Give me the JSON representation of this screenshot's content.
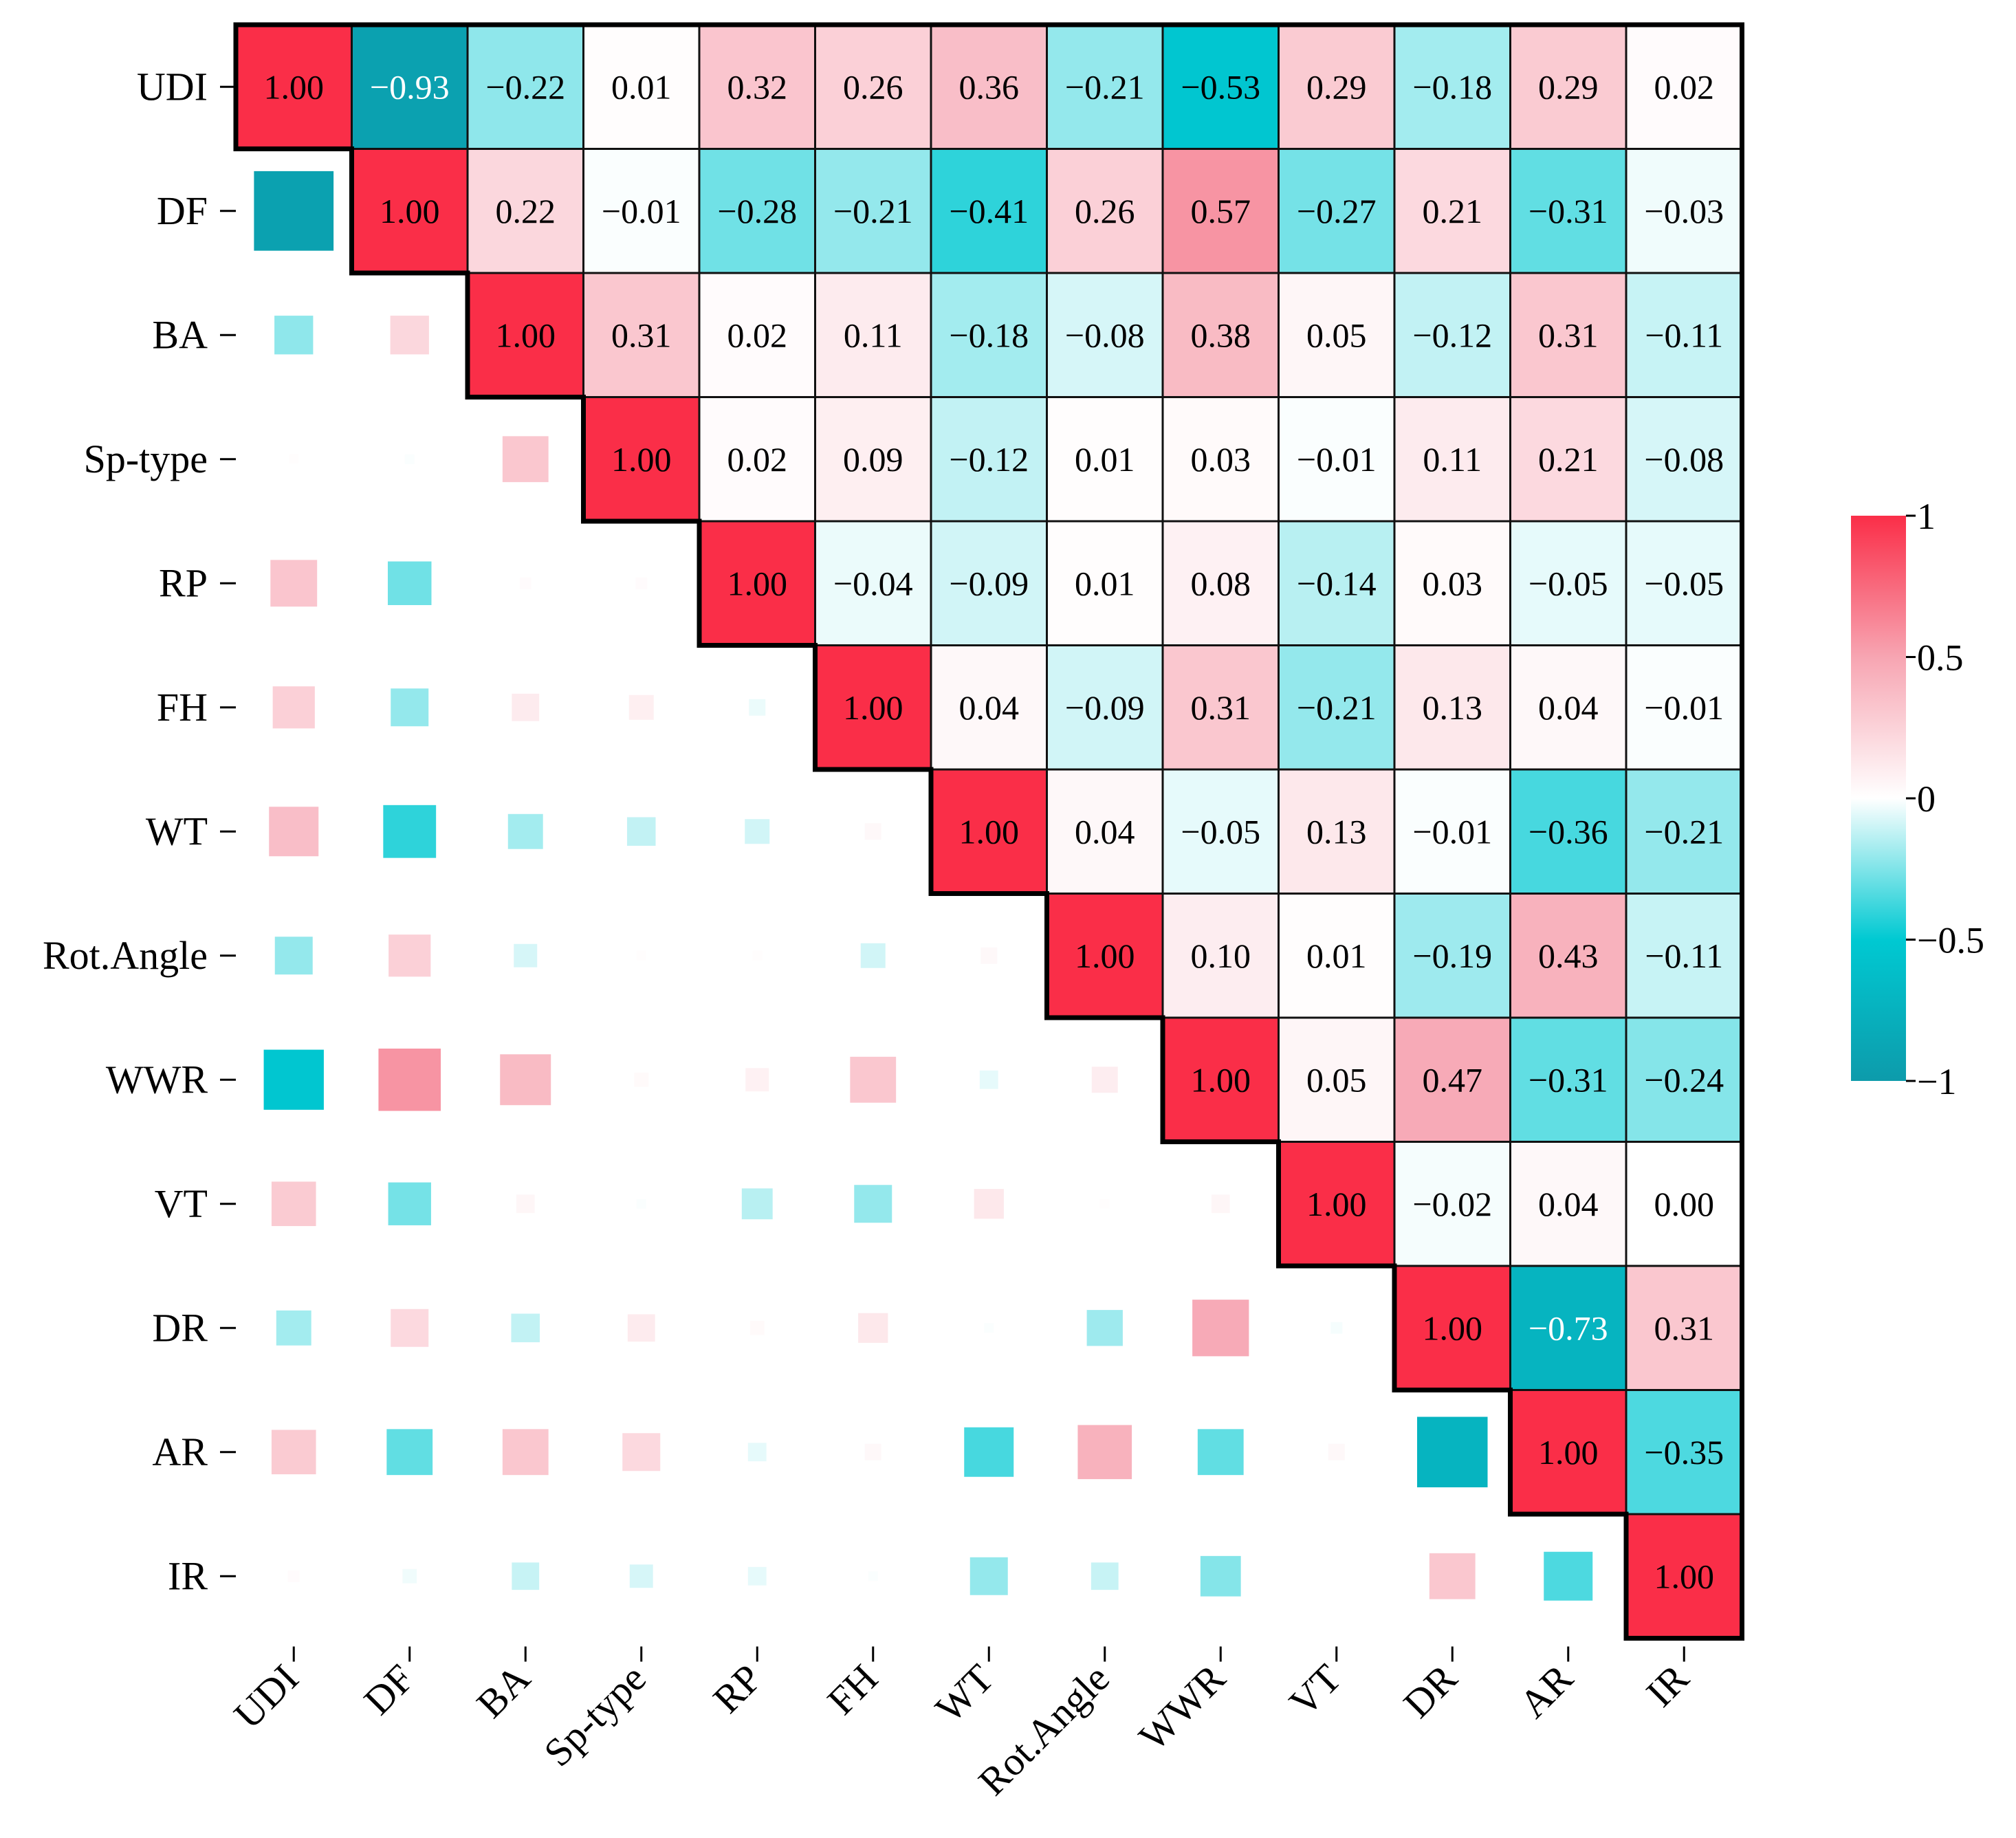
{
  "chart_data": {
    "type": "heatmap",
    "title": "",
    "xlabel": "",
    "ylabel": "",
    "variables": [
      "UDI",
      "DF",
      "BA",
      "Sp-type",
      "RP",
      "FH",
      "WT",
      "Rot.Angle",
      "WWR",
      "VT",
      "DR",
      "AR",
      "IR"
    ],
    "value_format": "2 decimals, upper triangle printed; lower triangle shown as squares sized by |r|",
    "matrix": [
      [
        1.0,
        -0.93,
        -0.22,
        0.01,
        0.32,
        0.26,
        0.36,
        -0.21,
        -0.53,
        0.29,
        -0.18,
        0.29,
        0.02
      ],
      [
        -0.93,
        1.0,
        0.22,
        -0.01,
        -0.28,
        -0.21,
        -0.41,
        0.26,
        0.57,
        -0.27,
        0.21,
        -0.31,
        -0.03
      ],
      [
        -0.22,
        0.22,
        1.0,
        0.31,
        0.02,
        0.11,
        -0.18,
        -0.08,
        0.38,
        0.05,
        -0.12,
        0.31,
        -0.11
      ],
      [
        0.01,
        -0.01,
        0.31,
        1.0,
        0.02,
        0.09,
        -0.12,
        0.01,
        0.03,
        -0.01,
        0.11,
        0.21,
        -0.08
      ],
      [
        0.32,
        -0.28,
        0.02,
        0.02,
        1.0,
        -0.04,
        -0.09,
        0.01,
        0.08,
        -0.14,
        0.03,
        -0.05,
        -0.05
      ],
      [
        0.26,
        -0.21,
        0.11,
        0.09,
        -0.04,
        1.0,
        0.04,
        -0.09,
        0.31,
        -0.21,
        0.13,
        0.04,
        -0.01
      ],
      [
        0.36,
        -0.41,
        -0.18,
        -0.12,
        -0.09,
        0.04,
        1.0,
        0.04,
        -0.05,
        0.13,
        -0.01,
        -0.36,
        -0.21
      ],
      [
        -0.21,
        0.26,
        -0.08,
        0.01,
        0.01,
        -0.09,
        0.04,
        1.0,
        0.1,
        0.01,
        -0.19,
        0.43,
        -0.11
      ],
      [
        -0.53,
        0.57,
        0.38,
        0.03,
        0.08,
        0.31,
        -0.05,
        0.1,
        1.0,
        0.05,
        0.47,
        -0.31,
        -0.24
      ],
      [
        0.29,
        -0.27,
        0.05,
        -0.01,
        -0.14,
        -0.21,
        0.13,
        0.01,
        0.05,
        1.0,
        -0.02,
        0.04,
        0.0
      ],
      [
        -0.18,
        0.21,
        -0.12,
        0.11,
        0.03,
        0.13,
        -0.01,
        -0.19,
        0.47,
        -0.02,
        1.0,
        -0.73,
        0.31
      ],
      [
        0.29,
        -0.31,
        0.31,
        0.21,
        -0.05,
        0.04,
        -0.36,
        0.43,
        -0.31,
        0.04,
        -0.73,
        1.0,
        -0.35
      ],
      [
        0.02,
        -0.03,
        -0.11,
        -0.08,
        -0.05,
        -0.01,
        -0.21,
        -0.11,
        -0.24,
        0.0,
        0.31,
        -0.35,
        1.0
      ]
    ],
    "colorbar": {
      "range": [
        -1,
        1
      ],
      "ticks": [
        1,
        0.5,
        0,
        -0.5,
        -1
      ],
      "tick_labels": [
        "1",
        "0.5",
        "0",
        "−0.5",
        "−1"
      ],
      "placement": "right"
    },
    "colors": {
      "negative_end": "#0d9bab",
      "negative_mid": "#00c9d2",
      "zero": "#ffffff",
      "positive_mid": "#f7a5b2",
      "positive_end": "#fa2e48"
    }
  }
}
